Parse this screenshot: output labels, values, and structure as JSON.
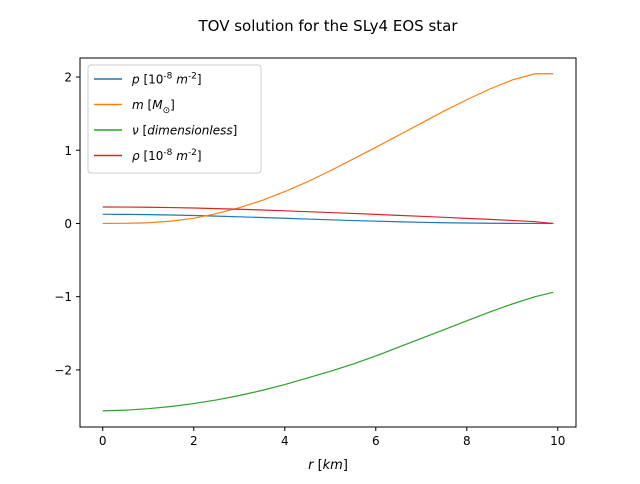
{
  "chart_data": {
    "type": "line",
    "title": "TOV solution for the SLy4 EOS star",
    "xlabel": "r [km]",
    "ylabel": "",
    "xlim": [
      -0.5,
      10.4
    ],
    "ylim": [
      -2.78,
      2.26
    ],
    "xticks": [
      0,
      2,
      4,
      6,
      8,
      10
    ],
    "yticks": [
      -2,
      -1,
      0,
      1,
      2
    ],
    "xtick_labels": [
      "0",
      "2",
      "4",
      "6",
      "8",
      "10"
    ],
    "ytick_labels": [
      "−2",
      "−1",
      "0",
      "1",
      "2"
    ],
    "grid": false,
    "legend_position": "upper-left",
    "x": [
      0,
      0.5,
      1,
      1.5,
      2,
      2.5,
      3,
      3.5,
      4,
      4.5,
      5,
      5.5,
      6,
      6.5,
      7,
      7.5,
      8,
      8.5,
      9,
      9.5,
      9.9
    ],
    "series": [
      {
        "name": "p [10^{-8} m^{-2}]",
        "color": "#1f77b4",
        "values": [
          0.125,
          0.124,
          0.121,
          0.116,
          0.109,
          0.1,
          0.091,
          0.081,
          0.071,
          0.06,
          0.05,
          0.04,
          0.031,
          0.023,
          0.016,
          0.01,
          0.006,
          0.003,
          0.001,
          0.0003,
          0.0
        ]
      },
      {
        "name": "m [M_sun]",
        "color": "#ff7f0e",
        "values": [
          0.0,
          0.002,
          0.01,
          0.032,
          0.07,
          0.135,
          0.215,
          0.315,
          0.435,
          0.57,
          0.72,
          0.88,
          1.04,
          1.205,
          1.37,
          1.535,
          1.69,
          1.835,
          1.96,
          2.045,
          2.045
        ]
      },
      {
        "name": "ν [dimensionless]",
        "color": "#2ca02c",
        "values": [
          -2.56,
          -2.55,
          -2.53,
          -2.5,
          -2.46,
          -2.41,
          -2.35,
          -2.28,
          -2.2,
          -2.11,
          -2.02,
          -1.92,
          -1.81,
          -1.69,
          -1.57,
          -1.45,
          -1.33,
          -1.21,
          -1.1,
          -1.0,
          -0.94
        ]
      },
      {
        "name": "ρ [10^{-8} m^{-2}]",
        "color": "#d62728",
        "values": [
          0.225,
          0.224,
          0.221,
          0.217,
          0.211,
          0.203,
          0.194,
          0.184,
          0.173,
          0.161,
          0.149,
          0.137,
          0.124,
          0.111,
          0.098,
          0.084,
          0.07,
          0.056,
          0.041,
          0.024,
          0.0
        ]
      }
    ]
  }
}
